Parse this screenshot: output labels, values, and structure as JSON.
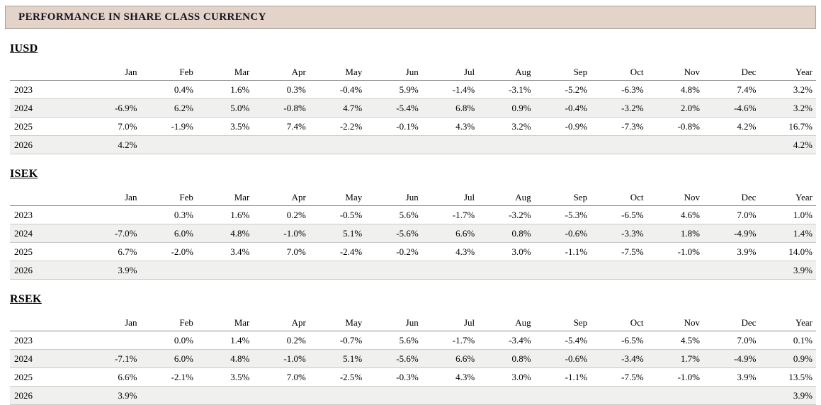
{
  "page": {
    "title": "PERFORMANCE IN SHARE CLASS CURRENCY"
  },
  "columns": [
    "Jan",
    "Feb",
    "Mar",
    "Apr",
    "May",
    "Jun",
    "Jul",
    "Aug",
    "Sep",
    "Oct",
    "Nov",
    "Dec",
    "Year"
  ],
  "sections": [
    {
      "heading": "IUSD",
      "rows": [
        {
          "year": "2023",
          "values": [
            "",
            "0.4%",
            "1.6%",
            "0.3%",
            "-0.4%",
            "5.9%",
            "-1.4%",
            "-3.1%",
            "-5.2%",
            "-6.3%",
            "4.8%",
            "7.4%",
            "3.2%"
          ]
        },
        {
          "year": "2024",
          "values": [
            "-6.9%",
            "6.2%",
            "5.0%",
            "-0.8%",
            "4.7%",
            "-5.4%",
            "6.8%",
            "0.9%",
            "-0.4%",
            "-3.2%",
            "2.0%",
            "-4.6%",
            "3.2%"
          ]
        },
        {
          "year": "2025",
          "values": [
            "7.0%",
            "-1.9%",
            "3.5%",
            "7.4%",
            "-2.2%",
            "-0.1%",
            "4.3%",
            "3.2%",
            "-0.9%",
            "-7.3%",
            "-0.8%",
            "4.2%",
            "16.7%"
          ]
        },
        {
          "year": "2026",
          "values": [
            "4.2%",
            "",
            "",
            "",
            "",
            "",
            "",
            "",
            "",
            "",
            "",
            "",
            "4.2%"
          ]
        }
      ]
    },
    {
      "heading": "ISEK",
      "rows": [
        {
          "year": "2023",
          "values": [
            "",
            "0.3%",
            "1.6%",
            "0.2%",
            "-0.5%",
            "5.6%",
            "-1.7%",
            "-3.2%",
            "-5.3%",
            "-6.5%",
            "4.6%",
            "7.0%",
            "1.0%"
          ]
        },
        {
          "year": "2024",
          "values": [
            "-7.0%",
            "6.0%",
            "4.8%",
            "-1.0%",
            "5.1%",
            "-5.6%",
            "6.6%",
            "0.8%",
            "-0.6%",
            "-3.3%",
            "1.8%",
            "-4.9%",
            "1.4%"
          ]
        },
        {
          "year": "2025",
          "values": [
            "6.7%",
            "-2.0%",
            "3.4%",
            "7.0%",
            "-2.4%",
            "-0.2%",
            "4.3%",
            "3.0%",
            "-1.1%",
            "-7.5%",
            "-1.0%",
            "3.9%",
            "14.0%"
          ]
        },
        {
          "year": "2026",
          "values": [
            "3.9%",
            "",
            "",
            "",
            "",
            "",
            "",
            "",
            "",
            "",
            "",
            "",
            "3.9%"
          ]
        }
      ]
    },
    {
      "heading": "RSEK",
      "rows": [
        {
          "year": "2023",
          "values": [
            "",
            "0.0%",
            "1.4%",
            "0.2%",
            "-0.7%",
            "5.6%",
            "-1.7%",
            "-3.4%",
            "-5.4%",
            "-6.5%",
            "4.5%",
            "7.0%",
            "0.1%"
          ]
        },
        {
          "year": "2024",
          "values": [
            "-7.1%",
            "6.0%",
            "4.8%",
            "-1.0%",
            "5.1%",
            "-5.6%",
            "6.6%",
            "0.8%",
            "-0.6%",
            "-3.4%",
            "1.7%",
            "-4.9%",
            "0.9%"
          ]
        },
        {
          "year": "2025",
          "values": [
            "6.6%",
            "-2.1%",
            "3.5%",
            "7.0%",
            "-2.5%",
            "-0.3%",
            "4.3%",
            "3.0%",
            "-1.1%",
            "-7.5%",
            "-1.0%",
            "3.9%",
            "13.5%"
          ]
        },
        {
          "year": "2026",
          "values": [
            "3.9%",
            "",
            "",
            "",
            "",
            "",
            "",
            "",
            "",
            "",
            "",
            "",
            "3.9%"
          ]
        }
      ]
    }
  ],
  "colors": {
    "title_bar_bg": "#e3d3c8",
    "title_bar_border": "#a8a29b",
    "row_stripe": "#f0f0ee",
    "row_line": "#cbcbcb",
    "header_line": "#8a8a8a",
    "text": "#000000"
  }
}
